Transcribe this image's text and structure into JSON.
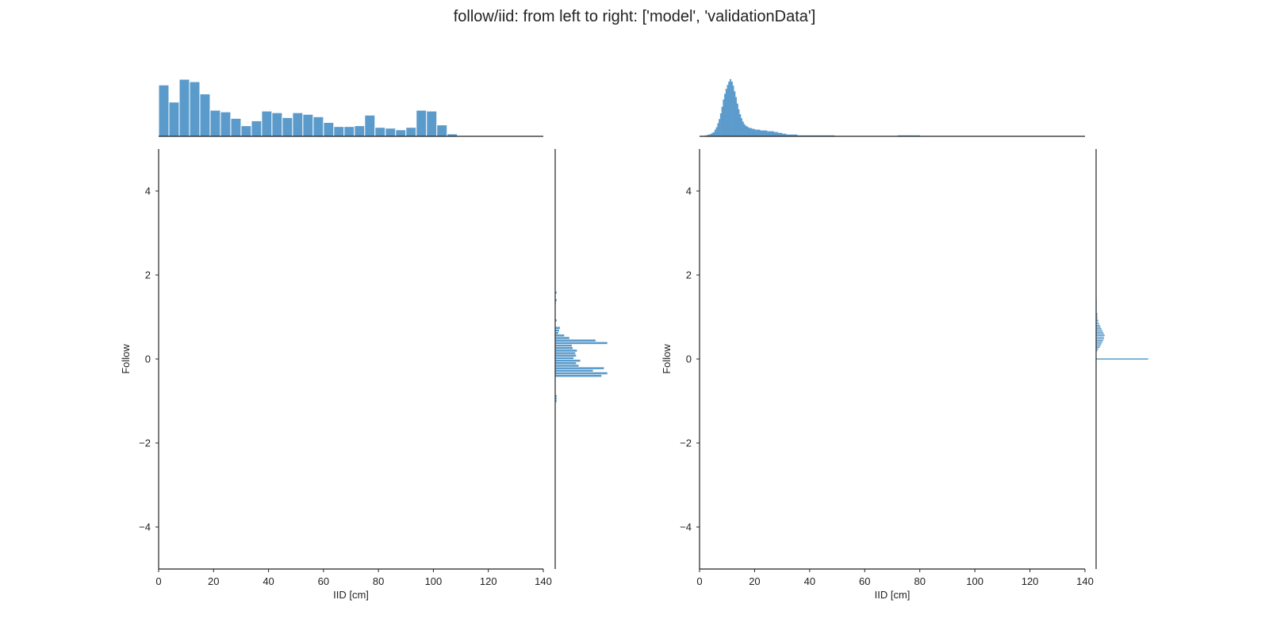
{
  "figure": {
    "title": "follow/iid: from left to right: ['model', 'validationData']"
  },
  "colors": {
    "bar": "#5b9bcb",
    "bar_stroke": "#ffffff",
    "axis": "#222222",
    "text": "#222222"
  },
  "chart_data": [
    {
      "type": "histogram",
      "name": "model",
      "title": "",
      "xlabel": "IID [cm]",
      "ylabel": "Follow",
      "xlim": [
        0,
        140
      ],
      "ylim": [
        -5,
        5
      ],
      "x_ticks": [
        0,
        20,
        40,
        60,
        80,
        100,
        120,
        140
      ],
      "y_ticks": [
        -4,
        -2,
        0,
        2,
        4
      ],
      "x_tick_labels": [
        "0",
        "20",
        "40",
        "60",
        "80",
        "100",
        "120",
        "140"
      ],
      "y_tick_labels": [
        "−4",
        "−2",
        "0",
        "2",
        "4"
      ],
      "grid": false,
      "marginal_x": {
        "bin_width": 3.75,
        "start": 0,
        "max": 70,
        "counts": [
          63,
          42,
          70,
          67,
          52,
          32,
          30,
          22,
          13,
          19,
          31,
          29,
          23,
          29,
          27,
          24,
          17,
          12,
          12,
          13,
          26,
          11,
          10,
          8,
          11,
          32,
          31,
          14,
          3,
          1,
          0,
          0,
          0,
          0,
          0,
          0,
          0
        ]
      },
      "marginal_y": {
        "bins_start": -1.03,
        "bin_width": 0.06,
        "max": 62,
        "counts": [
          2,
          2,
          2,
          0,
          0,
          0,
          0,
          0,
          0,
          0,
          55,
          62,
          45,
          58,
          28,
          25,
          30,
          22,
          25,
          24,
          26,
          21,
          20,
          62,
          48,
          17,
          11,
          4,
          5,
          6,
          0,
          0,
          2,
          0,
          0,
          0,
          0,
          0,
          0,
          1,
          2,
          0,
          0,
          2
        ]
      }
    },
    {
      "type": "histogram",
      "name": "validationData",
      "title": "",
      "xlabel": "IID [cm]",
      "ylabel": "Follow",
      "xlim": [
        0,
        140
      ],
      "ylim": [
        -5,
        5
      ],
      "x_ticks": [
        0,
        20,
        40,
        60,
        80,
        100,
        120,
        140
      ],
      "y_ticks": [
        -4,
        -2,
        0,
        2,
        4
      ],
      "x_tick_labels": [
        "0",
        "20",
        "40",
        "60",
        "80",
        "100",
        "120",
        "140"
      ],
      "y_tick_labels": [
        "−4",
        "−2",
        "0",
        "2",
        "4"
      ],
      "grid": false,
      "marginal_x": {
        "bin_width": 0.5,
        "start": 0,
        "max": 70,
        "counts": [
          0,
          0,
          0,
          0,
          1,
          1,
          2,
          2,
          3,
          4,
          5,
          8,
          11,
          16,
          21,
          28,
          36,
          45,
          52,
          58,
          63,
          67,
          70,
          67,
          62,
          55,
          48,
          40,
          33,
          27,
          22,
          18,
          15,
          13,
          12,
          11,
          10,
          10,
          9,
          9,
          8,
          8,
          8,
          8,
          7,
          7,
          7,
          7,
          7,
          6,
          6,
          6,
          6,
          6,
          5,
          5,
          5,
          4,
          4,
          4,
          3,
          3,
          3,
          2,
          2,
          2,
          2,
          2,
          2,
          2,
          2,
          1,
          1,
          1,
          1,
          1,
          1,
          1,
          1,
          1,
          1,
          1,
          1,
          1,
          1,
          1,
          1,
          1,
          1,
          1,
          1,
          1,
          1,
          1,
          1,
          1,
          1,
          1,
          0,
          0,
          0,
          0,
          0,
          0,
          0,
          0,
          0,
          0,
          0,
          0,
          0,
          0,
          0,
          0,
          0,
          0,
          0,
          0,
          0,
          0,
          0,
          0,
          0,
          0,
          0,
          0,
          0,
          0,
          0,
          0,
          0,
          0,
          0,
          0,
          0,
          0,
          0,
          0,
          0,
          0,
          0,
          0,
          0,
          0,
          1,
          1,
          1,
          1,
          1,
          1,
          1,
          1,
          1,
          1,
          1,
          1,
          1,
          1,
          1,
          1,
          0,
          0,
          0,
          0,
          0,
          0,
          0,
          0,
          0,
          0,
          0,
          0,
          0,
          0,
          0,
          0,
          0,
          0,
          0,
          0,
          0,
          0,
          0,
          0,
          0,
          0,
          0,
          0,
          0,
          0,
          0,
          0,
          0,
          0,
          0,
          0,
          0,
          0,
          0,
          0,
          0,
          0,
          0,
          0,
          0,
          0,
          0,
          0,
          0,
          0,
          0,
          0,
          0,
          0,
          0,
          0,
          0,
          0,
          0,
          0,
          0,
          0,
          0,
          0,
          0,
          0,
          0,
          0,
          0,
          0,
          0,
          0,
          0,
          0,
          0,
          0,
          0,
          0,
          0,
          0,
          0,
          0,
          0,
          0,
          0,
          0,
          0,
          0,
          0,
          0,
          0,
          0,
          0,
          0,
          0,
          0,
          0,
          0,
          0,
          0,
          0,
          0,
          0,
          0,
          0,
          0,
          0,
          0,
          0,
          0,
          0,
          0,
          0,
          0
        ]
      },
      "marginal_y": {
        "bins_start": -0.02,
        "bin_width": 0.04,
        "max": 65,
        "counts": [
          65,
          0,
          0,
          0,
          0,
          2,
          3,
          5,
          6,
          7,
          8,
          9,
          10,
          10,
          11,
          10,
          9,
          8,
          7,
          6,
          5,
          4,
          3,
          3,
          2,
          2,
          2,
          2,
          1,
          1,
          1,
          1,
          1,
          1,
          1,
          1
        ]
      }
    }
  ]
}
